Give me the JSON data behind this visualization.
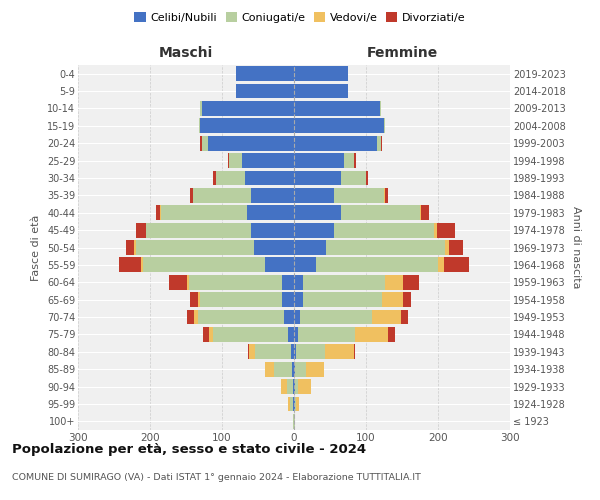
{
  "age_groups": [
    "100+",
    "95-99",
    "90-94",
    "85-89",
    "80-84",
    "75-79",
    "70-74",
    "65-69",
    "60-64",
    "55-59",
    "50-54",
    "45-49",
    "40-44",
    "35-39",
    "30-34",
    "25-29",
    "20-24",
    "15-19",
    "10-14",
    "5-9",
    "0-4"
  ],
  "birth_years": [
    "≤ 1923",
    "1924-1928",
    "1929-1933",
    "1934-1938",
    "1939-1943",
    "1944-1948",
    "1949-1953",
    "1954-1958",
    "1959-1963",
    "1964-1968",
    "1969-1973",
    "1974-1978",
    "1979-1983",
    "1984-1988",
    "1989-1993",
    "1994-1998",
    "1999-2003",
    "2004-2008",
    "2009-2013",
    "2014-2018",
    "2019-2023"
  ],
  "maschi": {
    "celibi": [
      0,
      1,
      2,
      3,
      4,
      8,
      14,
      16,
      16,
      40,
      55,
      60,
      65,
      60,
      68,
      72,
      120,
      130,
      128,
      80,
      80
    ],
    "coniugati": [
      1,
      4,
      8,
      25,
      50,
      105,
      120,
      115,
      130,
      170,
      165,
      145,
      120,
      80,
      40,
      18,
      8,
      2,
      2,
      1,
      0
    ],
    "vedovi": [
      0,
      3,
      8,
      12,
      8,
      5,
      5,
      3,
      3,
      3,
      2,
      1,
      1,
      0,
      0,
      0,
      0,
      0,
      0,
      0,
      0
    ],
    "divorziati": [
      0,
      0,
      0,
      0,
      2,
      8,
      10,
      10,
      25,
      30,
      12,
      14,
      6,
      5,
      4,
      2,
      2,
      0,
      0,
      0,
      0
    ]
  },
  "femmine": {
    "nubili": [
      0,
      1,
      1,
      2,
      3,
      5,
      8,
      12,
      12,
      30,
      45,
      55,
      65,
      55,
      65,
      70,
      115,
      125,
      120,
      75,
      75
    ],
    "coniugate": [
      1,
      2,
      4,
      15,
      40,
      80,
      100,
      110,
      115,
      170,
      165,
      140,
      110,
      70,
      35,
      14,
      6,
      1,
      1,
      0,
      0
    ],
    "vedove": [
      0,
      4,
      18,
      25,
      40,
      45,
      40,
      30,
      25,
      8,
      5,
      3,
      2,
      1,
      0,
      0,
      0,
      0,
      0,
      0,
      0
    ],
    "divorziate": [
      0,
      0,
      0,
      0,
      2,
      10,
      10,
      10,
      22,
      35,
      20,
      25,
      10,
      5,
      3,
      2,
      1,
      0,
      0,
      0,
      0
    ]
  },
  "colors": {
    "celibi_nubili": "#4472c4",
    "coniugati": "#b8cfa0",
    "vedovi": "#f0c060",
    "divorziati": "#c0392b"
  },
  "title": "Popolazione per età, sesso e stato civile - 2024",
  "subtitle": "COMUNE DI SUMIRAGO (VA) - Dati ISTAT 1° gennaio 2024 - Elaborazione TUTTITALIA.IT",
  "xlabel_left": "Maschi",
  "xlabel_right": "Femmine",
  "ylabel_left": "Fasce di età",
  "ylabel_right": "Anni di nascita",
  "xlim": 300,
  "background_color": "#f0f0f0"
}
